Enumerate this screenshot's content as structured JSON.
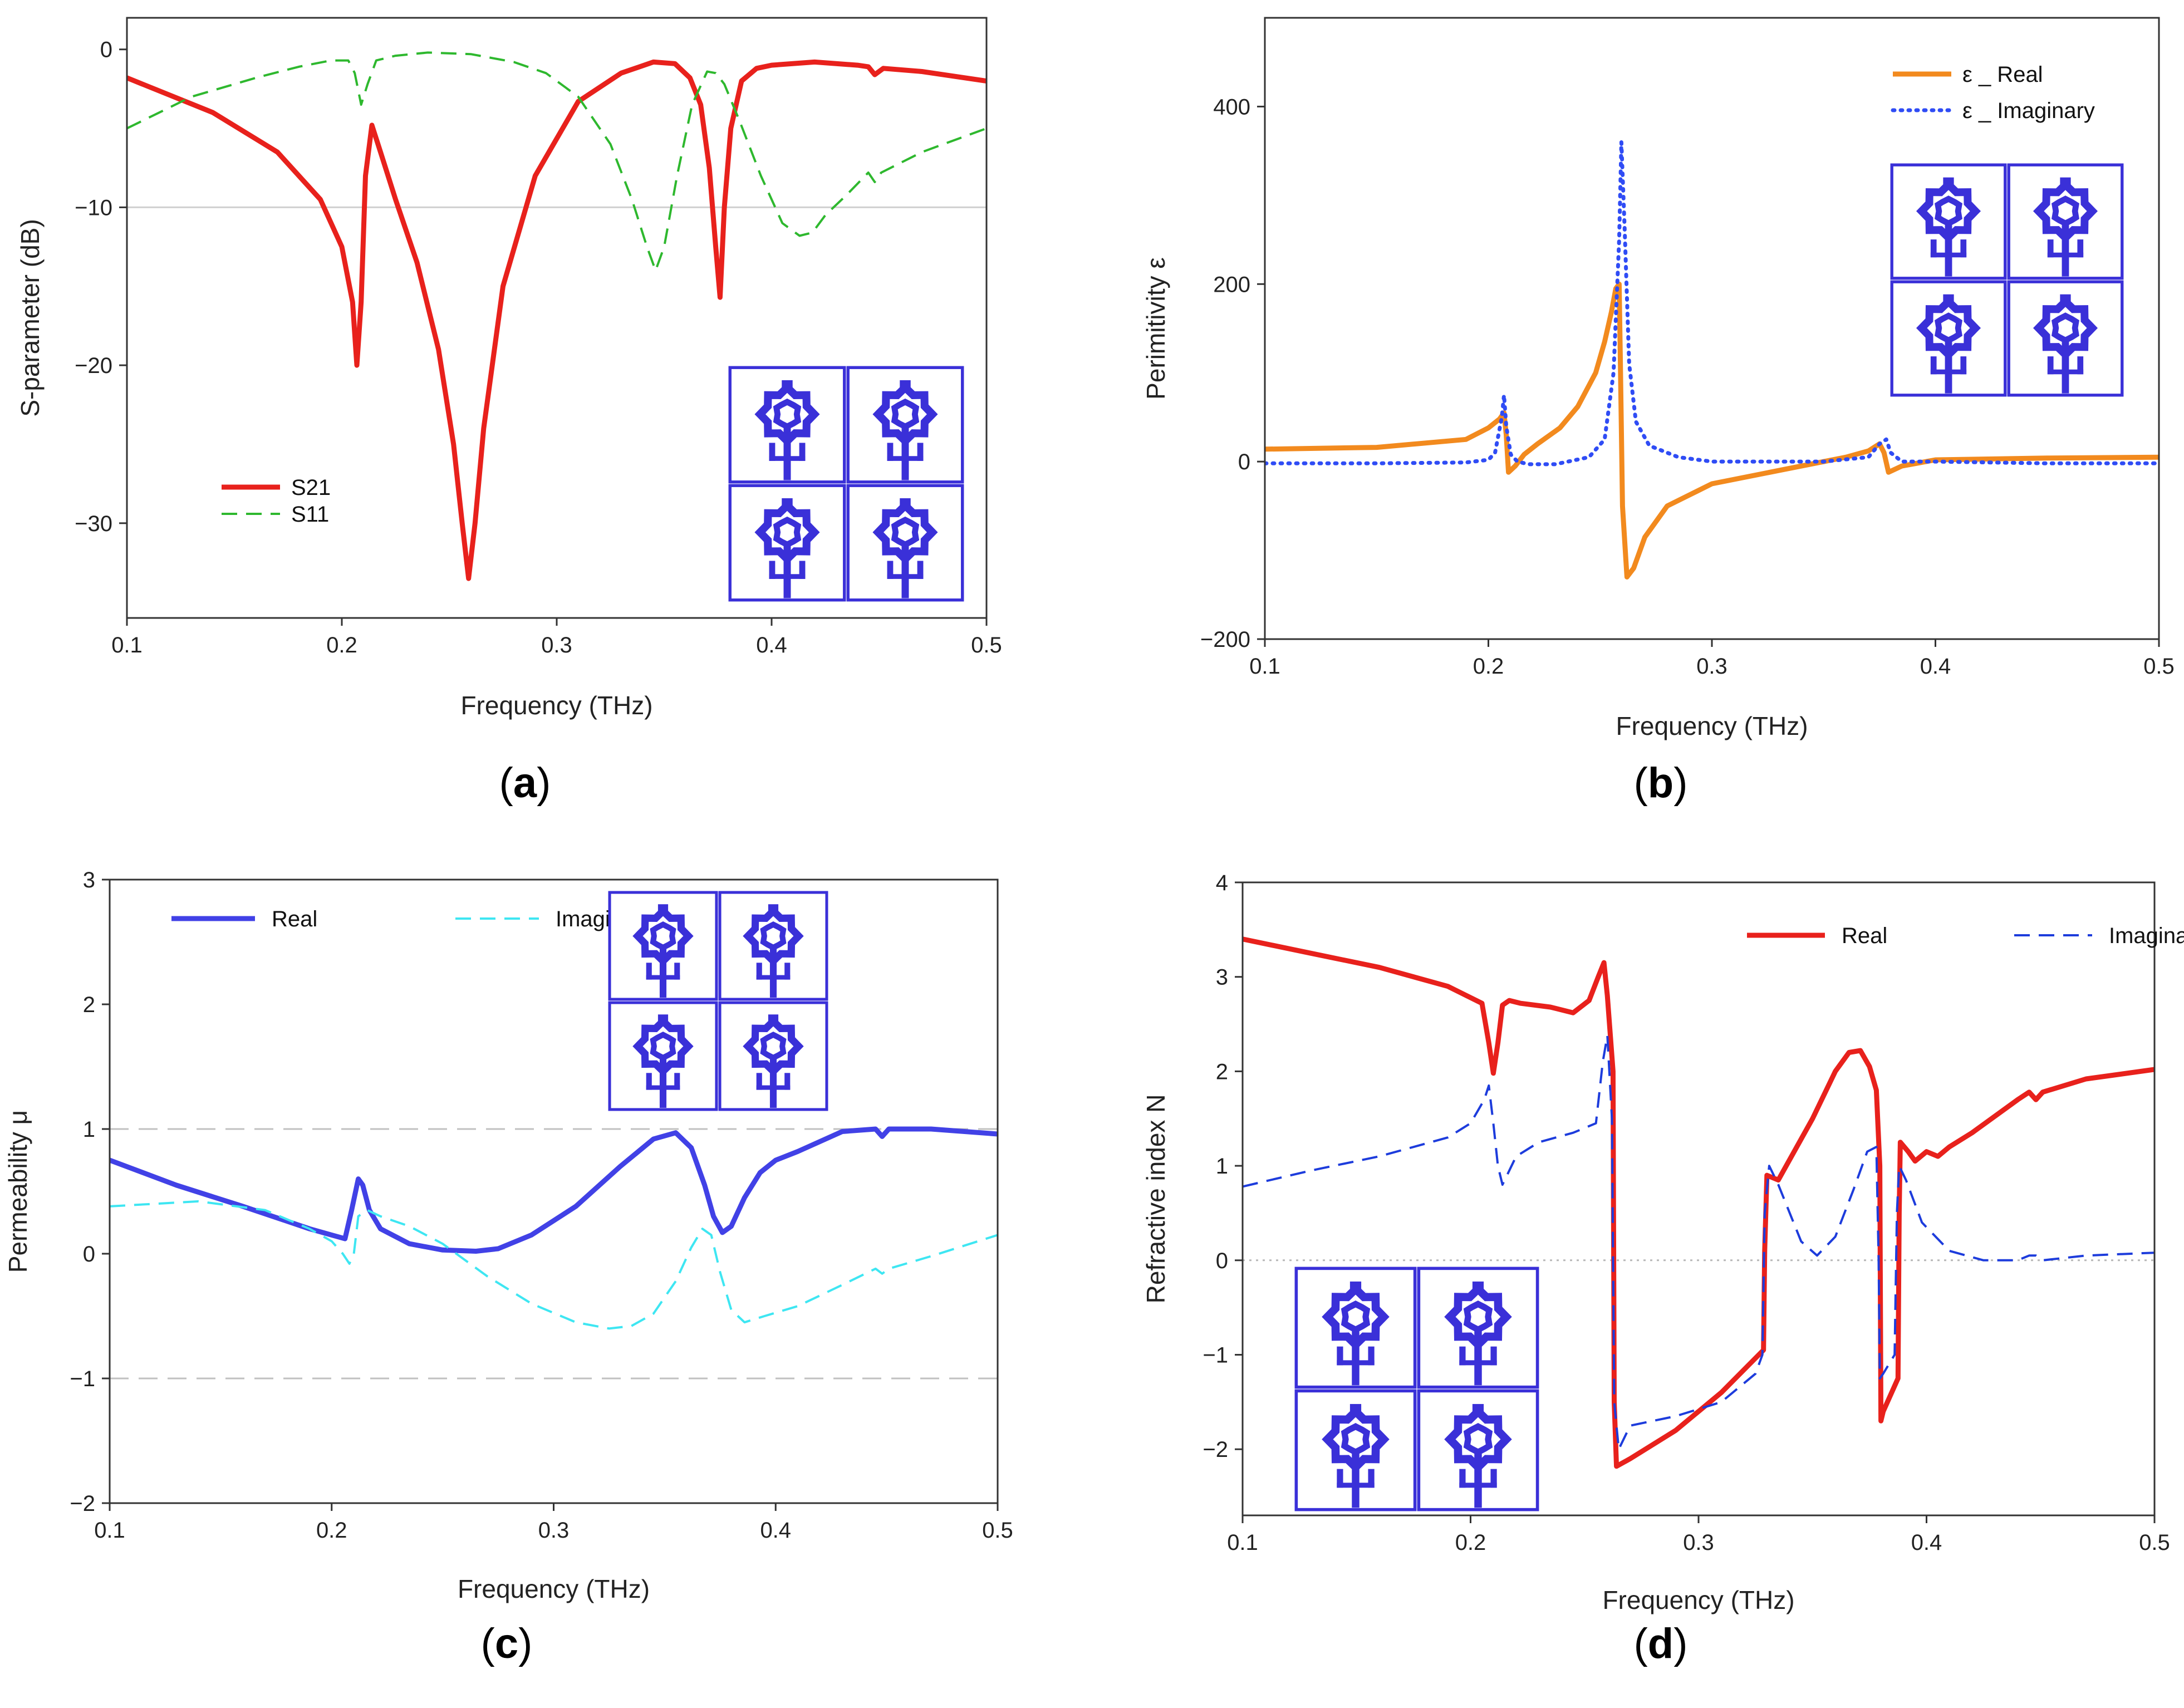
{
  "chart_data": [
    {
      "id": "a",
      "type": "line",
      "caption": "a",
      "xlabel": "Frequency (THz)",
      "ylabel": "S-parameter (dB)",
      "xlim": [
        0.1,
        0.5
      ],
      "ylim": [
        -36,
        2
      ],
      "xticks": [
        0.1,
        0.2,
        0.3,
        0.4,
        0.5
      ],
      "xtick_labels": [
        "0.1",
        "0.2",
        "0.3",
        "0.4",
        "0.5"
      ],
      "yticks": [
        0,
        -10,
        -20,
        -30
      ],
      "ytick_labels": [
        "0",
        "−10",
        "−20",
        "−30"
      ],
      "ref_lines": [
        {
          "y": -10,
          "color": "#d0d0d0",
          "dash": ""
        }
      ],
      "legend_position": "lower-left",
      "inset_position": "lower-right",
      "series": [
        {
          "name": "S21",
          "color": "#e8211c",
          "style": "solid",
          "x": [
            0.1,
            0.14,
            0.17,
            0.19,
            0.2,
            0.205,
            0.207,
            0.209,
            0.211,
            0.214,
            0.218,
            0.225,
            0.235,
            0.245,
            0.252,
            0.256,
            0.259,
            0.262,
            0.266,
            0.275,
            0.29,
            0.31,
            0.33,
            0.345,
            0.355,
            0.362,
            0.367,
            0.371,
            0.374,
            0.376,
            0.378,
            0.381,
            0.386,
            0.393,
            0.4,
            0.42,
            0.44,
            0.445,
            0.448,
            0.452,
            0.47,
            0.5
          ],
          "y": [
            -1.8,
            -4.0,
            -6.5,
            -9.5,
            -12.5,
            -16.0,
            -20.0,
            -16.0,
            -8.0,
            -4.8,
            -6.5,
            -9.5,
            -13.5,
            -19.0,
            -25.0,
            -30.0,
            -33.5,
            -30.0,
            -24.0,
            -15.0,
            -8.0,
            -3.3,
            -1.5,
            -0.8,
            -0.9,
            -1.8,
            -3.5,
            -7.5,
            -12.5,
            -15.7,
            -10.0,
            -5.0,
            -2.0,
            -1.2,
            -1.0,
            -0.8,
            -1.0,
            -1.1,
            -1.6,
            -1.2,
            -1.4,
            -2.0
          ]
        },
        {
          "name": "S11",
          "color": "#2eb82e",
          "style": "dashed",
          "x": [
            0.1,
            0.13,
            0.16,
            0.18,
            0.195,
            0.203,
            0.206,
            0.209,
            0.212,
            0.216,
            0.225,
            0.24,
            0.26,
            0.28,
            0.295,
            0.31,
            0.325,
            0.335,
            0.342,
            0.346,
            0.35,
            0.356,
            0.363,
            0.37,
            0.374,
            0.378,
            0.385,
            0.395,
            0.405,
            0.413,
            0.419,
            0.425,
            0.435,
            0.445,
            0.448,
            0.451,
            0.47,
            0.5
          ],
          "y": [
            -5.0,
            -3.0,
            -1.8,
            -1.1,
            -0.7,
            -0.7,
            -1.5,
            -3.5,
            -2.2,
            -0.7,
            -0.4,
            -0.2,
            -0.3,
            -0.8,
            -1.5,
            -3.0,
            -6.0,
            -9.5,
            -12.5,
            -14.0,
            -12.5,
            -8.0,
            -3.5,
            -1.4,
            -1.5,
            -2.2,
            -4.5,
            -8.0,
            -11.0,
            -11.8,
            -11.6,
            -10.5,
            -9.2,
            -7.8,
            -8.4,
            -7.8,
            -6.5,
            -5.0
          ]
        }
      ]
    },
    {
      "id": "b",
      "type": "line",
      "caption": "b",
      "xlabel": "Frequency (THz)",
      "ylabel": "Perimitivity ε",
      "xlim": [
        0.1,
        0.5
      ],
      "ylim": [
        -200,
        500
      ],
      "xticks": [
        0.1,
        0.2,
        0.3,
        0.4,
        0.5
      ],
      "xtick_labels": [
        "0.1",
        "0.2",
        "0.3",
        "0.4",
        "0.5"
      ],
      "yticks": [
        -200,
        0,
        200,
        400
      ],
      "ytick_labels": [
        "−200",
        "0",
        "200",
        "400"
      ],
      "ref_lines": [],
      "legend_position": "top-right",
      "inset_position": "upper-right",
      "series": [
        {
          "name": "ε _ Real",
          "color": "#f28a1e",
          "style": "solid",
          "x": [
            0.1,
            0.15,
            0.19,
            0.2,
            0.205,
            0.207,
            0.208,
            0.209,
            0.212,
            0.216,
            0.222,
            0.232,
            0.24,
            0.248,
            0.252,
            0.255,
            0.257,
            0.2585,
            0.259,
            0.26,
            0.262,
            0.265,
            0.27,
            0.28,
            0.3,
            0.33,
            0.36,
            0.37,
            0.375,
            0.377,
            0.379,
            0.385,
            0.4,
            0.45,
            0.5
          ],
          "y": [
            14,
            16,
            25,
            38,
            48,
            55,
            30,
            -12,
            -5,
            8,
            20,
            38,
            62,
            100,
            135,
            168,
            195,
            200,
            120,
            -50,
            -130,
            -120,
            -85,
            -50,
            -25,
            -10,
            5,
            12,
            20,
            10,
            -12,
            -5,
            2,
            4,
            5
          ]
        },
        {
          "name": "ε _ Imaginary",
          "color": "#2f4cf5",
          "style": "dotted",
          "x": [
            0.1,
            0.15,
            0.19,
            0.2,
            0.203,
            0.206,
            0.207,
            0.208,
            0.21,
            0.213,
            0.218,
            0.23,
            0.245,
            0.252,
            0.256,
            0.2585,
            0.2595,
            0.261,
            0.263,
            0.266,
            0.272,
            0.285,
            0.3,
            0.35,
            0.37,
            0.375,
            0.378,
            0.38,
            0.385,
            0.4,
            0.45,
            0.5
          ],
          "y": [
            -2,
            -2,
            -1,
            2,
            10,
            50,
            75,
            40,
            8,
            0,
            -3,
            -3,
            5,
            25,
            100,
            250,
            360,
            260,
            110,
            45,
            18,
            5,
            0,
            0,
            5,
            20,
            25,
            10,
            0,
            0,
            -2,
            -2
          ]
        }
      ]
    },
    {
      "id": "c",
      "type": "line",
      "caption": "c",
      "xlabel": "Frequency (THz)",
      "ylabel": "Permeability μ",
      "xlim": [
        0.1,
        0.5
      ],
      "ylim": [
        -2,
        3
      ],
      "xticks": [
        0.1,
        0.2,
        0.3,
        0.4,
        0.5
      ],
      "xtick_labels": [
        "0.1",
        "0.2",
        "0.3",
        "0.4",
        "0.5"
      ],
      "yticks": [
        -2,
        -1,
        0,
        1,
        2,
        3
      ],
      "ytick_labels": [
        "−2",
        "−1",
        "0",
        "1",
        "2",
        "3"
      ],
      "ref_lines": [
        {
          "y": 1,
          "color": "#c0c0c0",
          "dash": "34,18"
        },
        {
          "y": -1,
          "color": "#c0c0c0",
          "dash": "34,18"
        }
      ],
      "legend_position": "top-left",
      "inset_position": "upper-center",
      "series": [
        {
          "name": "Real",
          "color": "#4141e6",
          "style": "solid",
          "x": [
            0.1,
            0.13,
            0.16,
            0.19,
            0.2,
            0.206,
            0.209,
            0.212,
            0.214,
            0.217,
            0.222,
            0.235,
            0.25,
            0.265,
            0.275,
            0.29,
            0.31,
            0.33,
            0.345,
            0.355,
            0.362,
            0.368,
            0.372,
            0.376,
            0.38,
            0.386,
            0.393,
            0.4,
            0.41,
            0.43,
            0.445,
            0.448,
            0.451,
            0.47,
            0.5
          ],
          "y": [
            0.75,
            0.55,
            0.38,
            0.2,
            0.15,
            0.12,
            0.35,
            0.6,
            0.55,
            0.35,
            0.2,
            0.08,
            0.03,
            0.02,
            0.04,
            0.15,
            0.38,
            0.7,
            0.92,
            0.97,
            0.85,
            0.55,
            0.3,
            0.17,
            0.22,
            0.45,
            0.65,
            0.75,
            0.82,
            0.98,
            1.0,
            0.94,
            1.0,
            1.0,
            0.96
          ]
        },
        {
          "name": "Imaginary",
          "color": "#3ee6f2",
          "style": "dashed",
          "x": [
            0.1,
            0.14,
            0.17,
            0.19,
            0.2,
            0.205,
            0.208,
            0.21,
            0.212,
            0.216,
            0.222,
            0.235,
            0.25,
            0.27,
            0.29,
            0.31,
            0.325,
            0.335,
            0.345,
            0.355,
            0.362,
            0.367,
            0.371,
            0.375,
            0.38,
            0.386,
            0.395,
            0.41,
            0.43,
            0.445,
            0.448,
            0.451,
            0.47,
            0.5
          ],
          "y": [
            0.38,
            0.42,
            0.35,
            0.2,
            0.1,
            0.0,
            -0.08,
            0.0,
            0.3,
            0.35,
            0.3,
            0.22,
            0.08,
            -0.18,
            -0.4,
            -0.55,
            -0.6,
            -0.58,
            -0.48,
            -0.22,
            0.05,
            0.2,
            0.15,
            -0.15,
            -0.45,
            -0.55,
            -0.5,
            -0.42,
            -0.25,
            -0.12,
            -0.16,
            -0.12,
            -0.02,
            0.15
          ]
        }
      ]
    },
    {
      "id": "d",
      "type": "line",
      "caption": "d",
      "xlabel": "Frequency (THz)",
      "ylabel": "Refractive index N",
      "xlim": [
        0.1,
        0.5
      ],
      "ylim": [
        -2.7,
        4
      ],
      "xticks": [
        0.1,
        0.2,
        0.3,
        0.4,
        0.5
      ],
      "xtick_labels": [
        "0.1",
        "0.2",
        "0.3",
        "0.4",
        "0.5"
      ],
      "yticks": [
        -2,
        -1,
        0,
        1,
        2,
        3,
        4
      ],
      "ytick_labels": [
        "−2",
        "−1",
        "0",
        "1",
        "2",
        "3",
        "4"
      ],
      "ref_lines": [
        {
          "y": 0,
          "color": "#b8b8b8",
          "dash": "4,8"
        }
      ],
      "legend_position": "top-right",
      "inset_position": "lower-left",
      "series": [
        {
          "name": "Real",
          "color": "#e8211c",
          "style": "solid",
          "x": [
            0.1,
            0.13,
            0.16,
            0.19,
            0.205,
            0.208,
            0.21,
            0.212,
            0.214,
            0.217,
            0.222,
            0.235,
            0.245,
            0.252,
            0.256,
            0.2585,
            0.26,
            0.2625,
            0.263,
            0.264,
            0.27,
            0.29,
            0.31,
            0.3285,
            0.329,
            0.33,
            0.335,
            0.35,
            0.36,
            0.366,
            0.371,
            0.375,
            0.378,
            0.3795,
            0.38,
            0.381,
            0.3875,
            0.388,
            0.3885,
            0.392,
            0.395,
            0.4,
            0.405,
            0.41,
            0.42,
            0.44,
            0.445,
            0.448,
            0.451,
            0.47,
            0.5
          ],
          "y": [
            3.4,
            3.25,
            3.1,
            2.9,
            2.72,
            2.3,
            1.98,
            2.3,
            2.7,
            2.75,
            2.72,
            2.68,
            2.62,
            2.75,
            3.0,
            3.15,
            2.8,
            2.0,
            -1.5,
            -2.18,
            -2.1,
            -1.8,
            -1.4,
            -0.95,
            0.1,
            0.9,
            0.85,
            1.5,
            2.0,
            2.2,
            2.22,
            2.05,
            1.8,
            1.0,
            -1.7,
            -1.6,
            -1.25,
            0.5,
            1.25,
            1.15,
            1.05,
            1.15,
            1.1,
            1.2,
            1.35,
            1.7,
            1.78,
            1.7,
            1.78,
            1.92,
            2.02
          ]
        },
        {
          "name": "Imaginary",
          "color": "#1d3cdc",
          "style": "dashed",
          "x": [
            0.1,
            0.13,
            0.16,
            0.19,
            0.2,
            0.206,
            0.208,
            0.21,
            0.212,
            0.214,
            0.22,
            0.23,
            0.245,
            0.255,
            0.258,
            0.26,
            0.262,
            0.263,
            0.265,
            0.27,
            0.29,
            0.31,
            0.325,
            0.328,
            0.329,
            0.331,
            0.335,
            0.345,
            0.352,
            0.36,
            0.368,
            0.374,
            0.378,
            0.379,
            0.3795,
            0.381,
            0.386,
            0.387,
            0.388,
            0.391,
            0.398,
            0.41,
            0.425,
            0.44,
            0.445,
            0.448,
            0.451,
            0.47,
            0.5
          ],
          "y": [
            0.78,
            0.95,
            1.1,
            1.3,
            1.45,
            1.7,
            1.85,
            1.45,
            1.0,
            0.8,
            1.1,
            1.25,
            1.35,
            1.45,
            2.1,
            2.38,
            1.5,
            -1.5,
            -2.0,
            -1.75,
            -1.65,
            -1.5,
            -1.2,
            -1.0,
            0.5,
            1.0,
            0.8,
            0.2,
            0.05,
            0.25,
            0.75,
            1.15,
            1.2,
            0.0,
            -1.25,
            -1.2,
            -1.0,
            0.5,
            1.0,
            0.85,
            0.4,
            0.1,
            0.0,
            0.0,
            0.05,
            0.05,
            0.0,
            0.05,
            0.08
          ]
        }
      ]
    }
  ]
}
